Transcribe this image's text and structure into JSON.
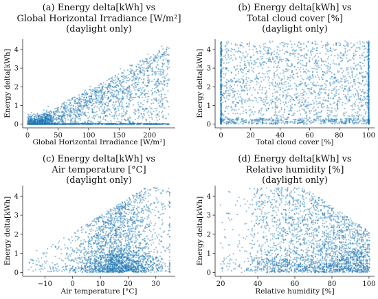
{
  "chart_data": [
    {
      "type": "scatter",
      "title_lines": [
        "(a) Energy delta[kWh] vs",
        "Global Horizontal Irradiance [W/m²]",
        "(daylight only)"
      ],
      "xlabel": "Global Horizontal Irradiance [W/m²]",
      "ylabel": "Energy delta[kWh]",
      "xlim": [
        -8,
        242
      ],
      "ylim": [
        -0.2,
        4.55
      ],
      "xticks": [
        0,
        50,
        100,
        150,
        200
      ],
      "yticks": [
        0,
        1,
        2,
        3,
        4
      ],
      "color": "#1f77b4",
      "distribution": "Dense band rising from (0,0) to (230,4); spread widens with irradiance; horizontal line of points at y=0 from x=0 to ~225; saturation near y=4.5 at high irradiance"
    },
    {
      "type": "scatter",
      "title_lines": [
        "(b) Energy delta[kWh] vs",
        "Total cloud cover [%]",
        "(daylight only)"
      ],
      "xlabel": "Total cloud cover [%]",
      "ylabel": "Energy delta[kWh]",
      "xlim": [
        -4,
        104
      ],
      "ylim": [
        -0.2,
        4.55
      ],
      "xticks": [
        0,
        20,
        40,
        60,
        80,
        100
      ],
      "yticks": [
        0,
        1,
        2,
        3,
        4
      ],
      "color": "#1f77b4",
      "distribution": "Uniform coverage across 0–100% cloud cover and 0–4.5 kWh; columns at every percent; densest along the 0% and 100% edges"
    },
    {
      "type": "scatter",
      "title_lines": [
        "(c) Energy delta[kWh] vs",
        "Air temperature [°C]",
        "(daylight only)"
      ],
      "xlabel": "Air temperature [°C]",
      "ylabel": "Energy delta[kWh]",
      "xlim": [
        -18,
        37
      ],
      "ylim": [
        -0.2,
        4.55
      ],
      "xticks": [
        -10,
        0,
        10,
        20,
        30
      ],
      "yticks": [
        0,
        1,
        2,
        3,
        4
      ],
      "color": "#1f77b4",
      "distribution": "Sparse below -5 °C, densest between 5 and 30 °C; energy up to ~4.5; dense cluster near y=0 across 0–30 °C"
    },
    {
      "type": "scatter",
      "title_lines": [
        "(d) Energy delta[kWh] vs",
        "Relative humidity [%]",
        "(daylight only)"
      ],
      "xlabel": "Relative humidity [%]",
      "ylabel": "Energy delta[kWh]",
      "xlim": [
        17,
        103
      ],
      "ylim": [
        -0.2,
        4.55
      ],
      "xticks": [
        20,
        40,
        60,
        80,
        100
      ],
      "yticks": [
        0,
        1,
        2,
        3,
        4
      ],
      "color": "#1f77b4",
      "distribution": "Sparse below 33%; dense columns from 35% to 100%; upper envelope decreases from ~4.5 at 40–65% to ~2 at 100%"
    }
  ]
}
